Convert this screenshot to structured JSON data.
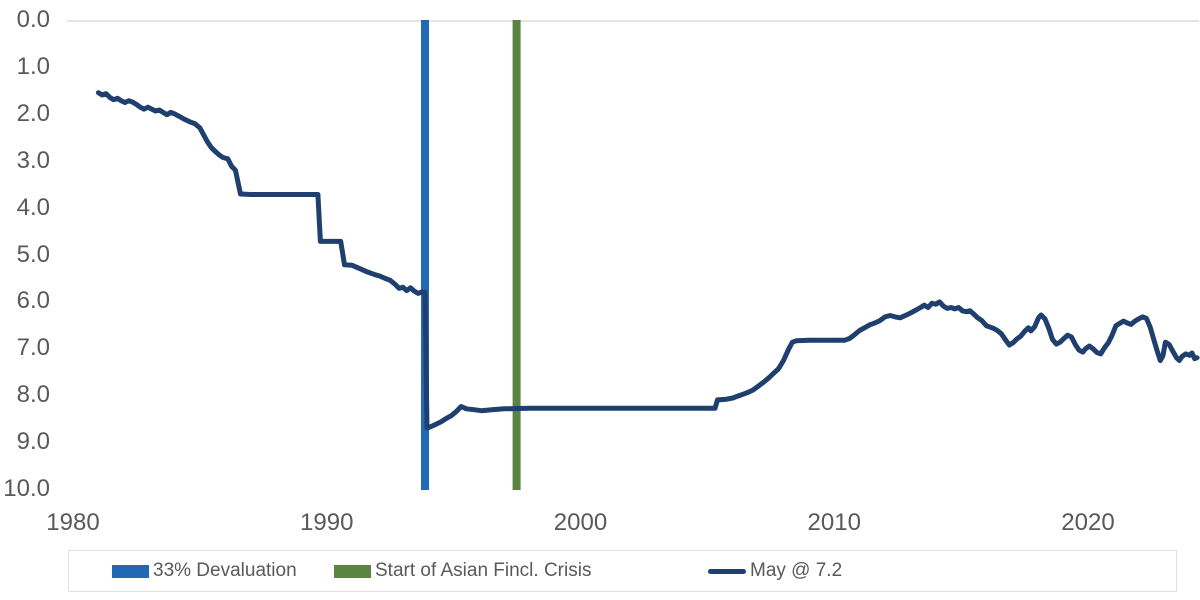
{
  "chart_data": {
    "type": "line",
    "background": "#ffffff",
    "text_color": "#595959",
    "gridline_color": "#dcdcdc",
    "x_axis": {
      "min": 1980,
      "max": 2025,
      "ticks": [
        1980,
        1990,
        2000,
        2010,
        2020
      ],
      "tick_labels": [
        "1980",
        "1990",
        "2000",
        "2010",
        "2020"
      ]
    },
    "y_axis": {
      "min": 0.0,
      "max": 10.0,
      "inverted": true,
      "ticks": [
        0,
        1,
        2,
        3,
        4,
        5,
        6,
        7,
        8,
        9,
        10
      ],
      "tick_labels": [
        "0.0",
        "1.0",
        "2.0",
        "3.0",
        "4.0",
        "5.0",
        "6.0",
        "7.0",
        "8.0",
        "9.0",
        "10.0"
      ]
    },
    "vlines": [
      {
        "x": 1993.87,
        "color": "#2368b4",
        "label": "33% Devaluation"
      },
      {
        "x": 1997.48,
        "color": "#5b8442",
        "label": "Start of Asian Fincl. Crisis"
      }
    ],
    "series": [
      {
        "name": "May @ 7.2",
        "color": "#1f406e",
        "last_point": {
          "month": "May",
          "value": 7.2
        },
        "points": [
          [
            1981.0,
            1.55
          ],
          [
            1981.15,
            1.6
          ],
          [
            1981.3,
            1.57
          ],
          [
            1981.45,
            1.65
          ],
          [
            1981.6,
            1.7
          ],
          [
            1981.75,
            1.67
          ],
          [
            1981.9,
            1.72
          ],
          [
            1982.05,
            1.76
          ],
          [
            1982.2,
            1.72
          ],
          [
            1982.35,
            1.75
          ],
          [
            1982.5,
            1.8
          ],
          [
            1982.65,
            1.86
          ],
          [
            1982.8,
            1.9
          ],
          [
            1982.95,
            1.86
          ],
          [
            1983.1,
            1.9
          ],
          [
            1983.25,
            1.94
          ],
          [
            1983.4,
            1.92
          ],
          [
            1983.55,
            1.97
          ],
          [
            1983.7,
            2.02
          ],
          [
            1983.85,
            1.97
          ],
          [
            1984.0,
            2.0
          ],
          [
            1984.2,
            2.06
          ],
          [
            1984.4,
            2.12
          ],
          [
            1984.6,
            2.17
          ],
          [
            1984.8,
            2.21
          ],
          [
            1985.0,
            2.3
          ],
          [
            1985.15,
            2.45
          ],
          [
            1985.3,
            2.6
          ],
          [
            1985.45,
            2.72
          ],
          [
            1985.6,
            2.8
          ],
          [
            1985.75,
            2.87
          ],
          [
            1985.9,
            2.93
          ],
          [
            1986.1,
            2.96
          ],
          [
            1986.25,
            3.12
          ],
          [
            1986.4,
            3.2
          ],
          [
            1986.5,
            3.45
          ],
          [
            1986.6,
            3.71
          ],
          [
            1987.0,
            3.72
          ],
          [
            1988.0,
            3.72
          ],
          [
            1989.0,
            3.72
          ],
          [
            1989.65,
            3.72
          ],
          [
            1989.75,
            4.72
          ],
          [
            1990.55,
            4.72
          ],
          [
            1990.7,
            5.22
          ],
          [
            1991.0,
            5.23
          ],
          [
            1991.3,
            5.3
          ],
          [
            1991.6,
            5.37
          ],
          [
            1991.9,
            5.43
          ],
          [
            1992.1,
            5.46
          ],
          [
            1992.3,
            5.51
          ],
          [
            1992.5,
            5.55
          ],
          [
            1992.7,
            5.64
          ],
          [
            1992.85,
            5.72
          ],
          [
            1993.0,
            5.7
          ],
          [
            1993.15,
            5.77
          ],
          [
            1993.3,
            5.71
          ],
          [
            1993.45,
            5.78
          ],
          [
            1993.6,
            5.83
          ],
          [
            1993.75,
            5.8
          ],
          [
            1993.87,
            5.81
          ],
          [
            1993.95,
            8.7
          ],
          [
            1994.1,
            8.67
          ],
          [
            1994.3,
            8.62
          ],
          [
            1994.5,
            8.57
          ],
          [
            1994.7,
            8.5
          ],
          [
            1994.9,
            8.44
          ],
          [
            1995.1,
            8.35
          ],
          [
            1995.3,
            8.24
          ],
          [
            1995.5,
            8.29
          ],
          [
            1995.8,
            8.31
          ],
          [
            1996.1,
            8.33
          ],
          [
            1996.5,
            8.31
          ],
          [
            1997.0,
            8.29
          ],
          [
            1998.0,
            8.28
          ],
          [
            1999.0,
            8.28
          ],
          [
            2000.0,
            8.28
          ],
          [
            2001.0,
            8.28
          ],
          [
            2002.0,
            8.28
          ],
          [
            2003.0,
            8.28
          ],
          [
            2004.0,
            8.28
          ],
          [
            2005.0,
            8.28
          ],
          [
            2005.3,
            8.28
          ],
          [
            2005.4,
            8.1
          ],
          [
            2005.7,
            8.09
          ],
          [
            2006.0,
            8.06
          ],
          [
            2006.2,
            8.02
          ],
          [
            2006.4,
            7.98
          ],
          [
            2006.6,
            7.94
          ],
          [
            2006.8,
            7.89
          ],
          [
            2007.0,
            7.81
          ],
          [
            2007.2,
            7.73
          ],
          [
            2007.4,
            7.64
          ],
          [
            2007.6,
            7.54
          ],
          [
            2007.8,
            7.44
          ],
          [
            2008.0,
            7.26
          ],
          [
            2008.2,
            7.02
          ],
          [
            2008.35,
            6.87
          ],
          [
            2008.5,
            6.84
          ],
          [
            2009.0,
            6.83
          ],
          [
            2009.5,
            6.83
          ],
          [
            2010.0,
            6.83
          ],
          [
            2010.4,
            6.83
          ],
          [
            2010.6,
            6.79
          ],
          [
            2010.8,
            6.71
          ],
          [
            2011.0,
            6.62
          ],
          [
            2011.2,
            6.56
          ],
          [
            2011.4,
            6.5
          ],
          [
            2011.6,
            6.46
          ],
          [
            2011.8,
            6.41
          ],
          [
            2012.0,
            6.33
          ],
          [
            2012.2,
            6.3
          ],
          [
            2012.4,
            6.33
          ],
          [
            2012.6,
            6.35
          ],
          [
            2012.8,
            6.3
          ],
          [
            2013.0,
            6.25
          ],
          [
            2013.2,
            6.19
          ],
          [
            2013.4,
            6.13
          ],
          [
            2013.55,
            6.08
          ],
          [
            2013.7,
            6.13
          ],
          [
            2013.85,
            6.04
          ],
          [
            2014.0,
            6.06
          ],
          [
            2014.15,
            6.01
          ],
          [
            2014.3,
            6.1
          ],
          [
            2014.45,
            6.15
          ],
          [
            2014.6,
            6.13
          ],
          [
            2014.75,
            6.16
          ],
          [
            2014.9,
            6.13
          ],
          [
            2015.05,
            6.2
          ],
          [
            2015.2,
            6.22
          ],
          [
            2015.35,
            6.2
          ],
          [
            2015.5,
            6.27
          ],
          [
            2015.65,
            6.35
          ],
          [
            2015.8,
            6.4
          ],
          [
            2016.0,
            6.52
          ],
          [
            2016.15,
            6.55
          ],
          [
            2016.3,
            6.58
          ],
          [
            2016.45,
            6.63
          ],
          [
            2016.6,
            6.7
          ],
          [
            2016.75,
            6.82
          ],
          [
            2016.9,
            6.93
          ],
          [
            2017.05,
            6.88
          ],
          [
            2017.2,
            6.8
          ],
          [
            2017.35,
            6.74
          ],
          [
            2017.5,
            6.64
          ],
          [
            2017.65,
            6.56
          ],
          [
            2017.75,
            6.63
          ],
          [
            2017.9,
            6.54
          ],
          [
            2018.05,
            6.35
          ],
          [
            2018.15,
            6.29
          ],
          [
            2018.3,
            6.37
          ],
          [
            2018.45,
            6.57
          ],
          [
            2018.6,
            6.81
          ],
          [
            2018.75,
            6.91
          ],
          [
            2018.9,
            6.87
          ],
          [
            2019.05,
            6.79
          ],
          [
            2019.2,
            6.72
          ],
          [
            2019.35,
            6.76
          ],
          [
            2019.5,
            6.92
          ],
          [
            2019.65,
            7.04
          ],
          [
            2019.8,
            7.08
          ],
          [
            2019.9,
            7.01
          ],
          [
            2020.05,
            6.95
          ],
          [
            2020.2,
            7.01
          ],
          [
            2020.35,
            7.09
          ],
          [
            2020.5,
            7.12
          ],
          [
            2020.65,
            6.99
          ],
          [
            2020.8,
            6.88
          ],
          [
            2020.95,
            6.72
          ],
          [
            2021.1,
            6.52
          ],
          [
            2021.25,
            6.47
          ],
          [
            2021.4,
            6.42
          ],
          [
            2021.55,
            6.46
          ],
          [
            2021.7,
            6.49
          ],
          [
            2021.85,
            6.42
          ],
          [
            2022.0,
            6.37
          ],
          [
            2022.15,
            6.33
          ],
          [
            2022.3,
            6.36
          ],
          [
            2022.45,
            6.55
          ],
          [
            2022.6,
            6.83
          ],
          [
            2022.75,
            7.1
          ],
          [
            2022.85,
            7.26
          ],
          [
            2022.95,
            7.16
          ],
          [
            2023.05,
            6.87
          ],
          [
            2023.2,
            6.92
          ],
          [
            2023.35,
            7.07
          ],
          [
            2023.5,
            7.21
          ],
          [
            2023.6,
            7.26
          ],
          [
            2023.7,
            7.18
          ],
          [
            2023.85,
            7.12
          ],
          [
            2024.0,
            7.15
          ],
          [
            2024.1,
            7.1
          ],
          [
            2024.2,
            7.22
          ],
          [
            2024.3,
            7.2
          ]
        ]
      }
    ],
    "legend": {
      "position": "bottom",
      "border_color": "#e0e0e0",
      "items": [
        {
          "label": "33% Devaluation",
          "swatch": "rect",
          "color": "#2368b4"
        },
        {
          "label": "Start of Asian Fincl. Crisis",
          "swatch": "rect",
          "color": "#5b8442"
        },
        {
          "label": "May @ 7.2",
          "swatch": "line",
          "color": "#1f406e"
        }
      ]
    }
  }
}
